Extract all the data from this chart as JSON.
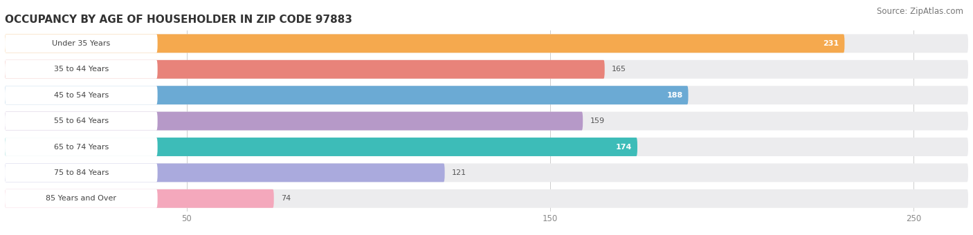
{
  "title": "OCCUPANCY BY AGE OF HOUSEHOLDER IN ZIP CODE 97883",
  "source": "Source: ZipAtlas.com",
  "categories": [
    "Under 35 Years",
    "35 to 44 Years",
    "45 to 54 Years",
    "55 to 64 Years",
    "65 to 74 Years",
    "75 to 84 Years",
    "85 Years and Over"
  ],
  "values": [
    231,
    165,
    188,
    159,
    174,
    121,
    74
  ],
  "bar_colors": [
    "#F5A94E",
    "#E8837A",
    "#6BAAD4",
    "#B699C8",
    "#3DBCB8",
    "#AAAADD",
    "#F4A8BC"
  ],
  "bar_bg_colors": [
    "#EDEDEE",
    "#EDEDEE",
    "#EDEDEE",
    "#EDEDEE",
    "#EDEDEE",
    "#EDEDEE",
    "#EDEDEE"
  ],
  "value_inside": [
    true,
    false,
    true,
    false,
    true,
    false,
    false
  ],
  "xlim_data": 265,
  "xticks": [
    50,
    150,
    250
  ],
  "title_fontsize": 11,
  "source_fontsize": 8.5,
  "figsize": [
    14.06,
    3.4
  ],
  "dpi": 100,
  "bg_color": "#FFFFFF"
}
